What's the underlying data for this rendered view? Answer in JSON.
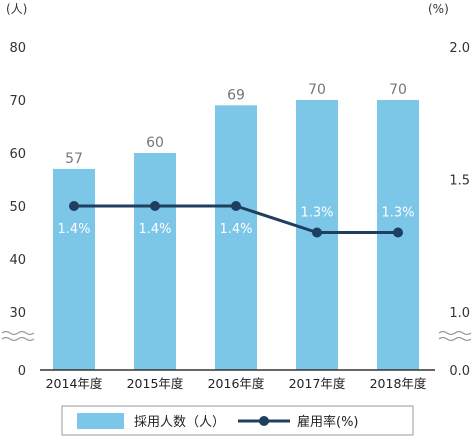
{
  "chart_data": {
    "type": "bar+line",
    "categories": [
      "2014年度",
      "2015年度",
      "2016年度",
      "2017年度",
      "2018年度"
    ],
    "series": [
      {
        "name": "採用人数（人）",
        "type": "bar",
        "axis": "left",
        "color": "#7cc6e8",
        "values": [
          57,
          60,
          69,
          70,
          70
        ],
        "labels": [
          "57",
          "60",
          "69",
          "70",
          "70"
        ]
      },
      {
        "name": "雇用率(%)",
        "type": "line",
        "axis": "right",
        "color": "#1f3f60",
        "values": [
          1.4,
          1.4,
          1.4,
          1.3,
          1.3
        ],
        "labels": [
          "1.4%",
          "1.4%",
          "1.4%",
          "1.3%",
          "1.3%"
        ]
      }
    ],
    "left_axis": {
      "unit": "(人)",
      "ticks": [
        "0",
        "30",
        "40",
        "50",
        "60",
        "70",
        "80"
      ],
      "broken_between": [
        0,
        30
      ],
      "ylim": [
        0,
        80
      ]
    },
    "right_axis": {
      "unit": "(%)",
      "ticks": [
        "0.0",
        "1.0",
        "1.5",
        "2.0"
      ],
      "broken_between": [
        0.0,
        1.0
      ],
      "ylim": [
        0.0,
        2.0
      ]
    },
    "legend_placement": "bottom-center",
    "grid": false,
    "axis_break_color": "#999999",
    "axis_line_color": "#333333"
  }
}
